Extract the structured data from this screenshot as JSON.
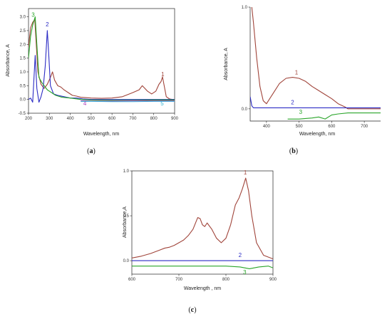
{
  "chart_data": [
    {
      "type": "line",
      "panel_label": "a",
      "xlabel": "Wavelength, nm",
      "ylabel": "Absorbance, A",
      "xlim": [
        200,
        900
      ],
      "ylim": [
        -0.5,
        3.3
      ],
      "xticks": [
        200,
        300,
        400,
        500,
        600,
        700,
        800,
        900
      ],
      "yticks": [
        -0.5,
        0.0,
        0.5,
        1.0,
        1.5,
        2.0,
        2.5,
        3.0
      ],
      "xtick_labels": [
        "200",
        "300",
        "400",
        "500",
        "600",
        "700",
        "800",
        "900"
      ],
      "ytick_labels": [
        "-0.5",
        "0.0",
        "0.5",
        "1.0",
        "1.5",
        "2.0",
        "2.5",
        "3.0"
      ],
      "series": [
        {
          "label": "1",
          "color": "#a0443a",
          "label_pos": [
            843,
            0.85
          ],
          "x": [
            200,
            210,
            220,
            230,
            245,
            260,
            275,
            290,
            305,
            315,
            325,
            340,
            355,
            370,
            390,
            410,
            430,
            450,
            500,
            550,
            600,
            650,
            700,
            730,
            745,
            755,
            770,
            790,
            810,
            825,
            835,
            842,
            850,
            860,
            875,
            890,
            900
          ],
          "y": [
            1.9,
            2.6,
            2.8,
            2.9,
            1.0,
            0.55,
            0.4,
            0.55,
            0.8,
            1.0,
            0.7,
            0.5,
            0.45,
            0.35,
            0.25,
            0.15,
            0.12,
            0.08,
            0.05,
            0.04,
            0.05,
            0.1,
            0.25,
            0.35,
            0.5,
            0.42,
            0.3,
            0.2,
            0.3,
            0.55,
            0.65,
            0.82,
            0.5,
            0.1,
            0.02,
            0.0,
            0.0
          ]
        },
        {
          "label": "2",
          "color": "#2b2bc4",
          "label_pos": [
            290,
            2.65
          ],
          "x": [
            200,
            210,
            220,
            232,
            240,
            250,
            260,
            270,
            280,
            290,
            295,
            305,
            320,
            340,
            370,
            400,
            430,
            460,
            500,
            600,
            700,
            800,
            900
          ],
          "y": [
            0.0,
            0.05,
            -0.1,
            1.6,
            0.4,
            -0.1,
            0.1,
            0.4,
            1.2,
            2.5,
            1.9,
            0.5,
            0.2,
            0.15,
            0.1,
            0.05,
            0.05,
            0.02,
            0.0,
            0.0,
            0.0,
            0.0,
            0.0
          ]
        },
        {
          "label": "3",
          "color": "#2aa52a",
          "label_pos": [
            222,
            3.0
          ],
          "x": [
            200,
            210,
            220,
            232,
            240,
            250,
            265,
            280,
            290,
            310,
            330,
            360,
            400,
            450,
            500,
            600,
            700,
            800,
            900
          ],
          "y": [
            1.5,
            2.3,
            2.7,
            3.0,
            2.0,
            0.8,
            0.6,
            0.45,
            0.35,
            0.25,
            0.15,
            0.08,
            0.05,
            0.0,
            -0.02,
            -0.03,
            -0.03,
            -0.02,
            -0.02
          ]
        },
        {
          "label": "4",
          "color": "#b040c0",
          "label_pos": [
            470,
            -0.22
          ],
          "x": [
            450,
            500,
            600,
            700,
            800,
            900
          ],
          "y": [
            -0.05,
            -0.06,
            -0.06,
            -0.05,
            -0.05,
            -0.05
          ]
        },
        {
          "label": "5",
          "color": "#2ab0d0",
          "label_pos": [
            840,
            -0.22
          ],
          "x": [
            450,
            500,
            600,
            700,
            800,
            900
          ],
          "y": [
            -0.07,
            -0.07,
            -0.08,
            -0.08,
            -0.07,
            -0.07
          ]
        }
      ]
    },
    {
      "type": "line",
      "panel_label": "b",
      "xlabel": "Wavelength, nm",
      "ylabel": "Absorbance, A",
      "xlim": [
        350,
        750
      ],
      "ylim": [
        -0.12,
        1.0
      ],
      "xticks": [
        400,
        500,
        600,
        700
      ],
      "yticks": [
        0.0,
        1.0
      ],
      "xtick_labels": [
        "400",
        "500",
        "600",
        "700"
      ],
      "ytick_labels": [
        "0.0",
        "1.0"
      ],
      "series": [
        {
          "label": "1",
          "color": "#a0443a",
          "label_pos": [
            492,
            0.34
          ],
          "x": [
            355,
            360,
            370,
            380,
            390,
            400,
            420,
            440,
            460,
            480,
            500,
            520,
            540,
            560,
            580,
            600,
            620,
            640,
            650,
            660,
            680,
            700,
            750
          ],
          "y": [
            1.0,
            0.85,
            0.5,
            0.22,
            0.08,
            0.05,
            0.15,
            0.25,
            0.3,
            0.31,
            0.3,
            0.27,
            0.22,
            0.18,
            0.14,
            0.1,
            0.05,
            0.02,
            0.0,
            0.0,
            0.0,
            0.0,
            0.0
          ]
        },
        {
          "label": "2",
          "color": "#2b2bc4",
          "label_pos": [
            480,
            0.045
          ],
          "x": [
            350,
            355,
            360,
            380,
            450,
            550,
            650,
            750
          ],
          "y": [
            0.12,
            0.03,
            0.01,
            0.01,
            0.01,
            0.01,
            0.01,
            0.01
          ]
        },
        {
          "label": "3",
          "color": "#2aa52a",
          "label_pos": [
            505,
            -0.05
          ],
          "x": [
            465,
            480,
            500,
            540,
            560,
            580,
            600,
            620,
            650,
            700,
            750
          ],
          "y": [
            -0.1,
            -0.1,
            -0.1,
            -0.09,
            -0.08,
            -0.1,
            -0.06,
            -0.05,
            -0.04,
            -0.04,
            -0.04
          ]
        }
      ]
    },
    {
      "type": "line",
      "panel_label": "c",
      "xlabel": "Wavelength , nm",
      "ylabel": "Absorbance,A",
      "xlim": [
        600,
        900
      ],
      "ylim": [
        -0.15,
        1.0
      ],
      "xticks": [
        600,
        700,
        800,
        900
      ],
      "yticks": [
        0.0,
        0.5,
        1.0
      ],
      "xtick_labels": [
        "600",
        "700",
        "800",
        "900"
      ],
      "ytick_labels": [
        "0.0",
        "0.5",
        "1.0"
      ],
      "series": [
        {
          "label": "1",
          "color": "#a0443a",
          "label_pos": [
            841,
            0.96
          ],
          "x": [
            600,
            620,
            640,
            660,
            670,
            680,
            690,
            700,
            710,
            720,
            730,
            740,
            745,
            750,
            755,
            760,
            770,
            780,
            790,
            800,
            810,
            820,
            828,
            835,
            842,
            848,
            855,
            865,
            880,
            900
          ],
          "y": [
            0.03,
            0.05,
            0.08,
            0.12,
            0.14,
            0.15,
            0.17,
            0.2,
            0.23,
            0.28,
            0.35,
            0.48,
            0.47,
            0.4,
            0.38,
            0.42,
            0.35,
            0.25,
            0.2,
            0.25,
            0.4,
            0.62,
            0.7,
            0.8,
            0.92,
            0.78,
            0.5,
            0.2,
            0.06,
            0.02
          ]
        },
        {
          "label": "2",
          "color": "#2b2bc4",
          "label_pos": [
            830,
            0.04
          ],
          "x": [
            600,
            700,
            800,
            900
          ],
          "y": [
            0.0,
            0.0,
            0.0,
            0.0
          ]
        },
        {
          "label": "3",
          "color": "#2aa52a",
          "label_pos": [
            840,
            -0.15
          ],
          "x": [
            600,
            700,
            750,
            800,
            830,
            850,
            870,
            890,
            900
          ],
          "y": [
            -0.06,
            -0.06,
            -0.06,
            -0.06,
            -0.07,
            -0.09,
            -0.07,
            -0.06,
            -0.08
          ]
        }
      ]
    }
  ]
}
